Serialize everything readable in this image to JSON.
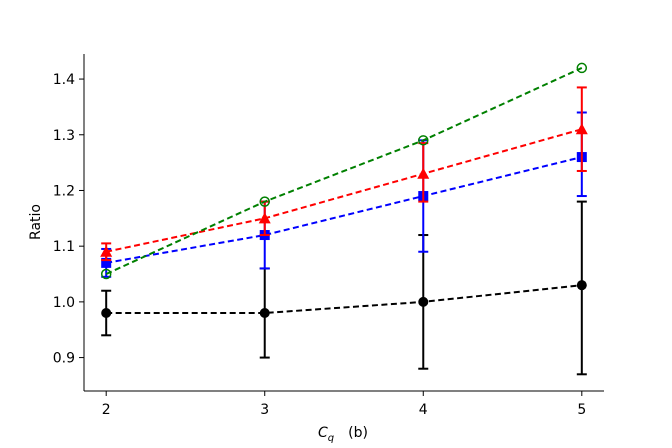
{
  "chart_data": {
    "type": "line",
    "xlabel": "C_q",
    "xlabel_main": "C",
    "xlabel_sub": "q",
    "xlabel_suffix": "(b)",
    "ylabel": "Ratio",
    "xlim": [
      1.86,
      5.14
    ],
    "ylim": [
      0.84,
      1.445
    ],
    "x_ticks": [
      2,
      3,
      4,
      5
    ],
    "y_ticks": [
      0.9,
      1.0,
      1.1,
      1.2,
      1.3,
      1.4
    ],
    "x_tick_labels": [
      "2",
      "3",
      "4",
      "5"
    ],
    "y_tick_labels": [
      "0.9",
      "1.0",
      "1.1",
      "1.2",
      "1.3",
      "1.4"
    ],
    "grid": false,
    "legend": "none",
    "series": [
      {
        "color": "#000000",
        "marker": "circle-filled",
        "x": [
          2,
          3,
          4,
          5
        ],
        "y": [
          0.98,
          0.98,
          1.0,
          1.03
        ],
        "err_low": [
          0.94,
          0.9,
          0.88,
          0.87
        ],
        "err_high": [
          1.02,
          1.06,
          1.12,
          1.18
        ]
      },
      {
        "color": "#0000ff",
        "marker": "square-filled",
        "x": [
          2,
          3,
          4,
          5
        ],
        "y": [
          1.07,
          1.12,
          1.19,
          1.26
        ],
        "err_low": [
          1.045,
          1.06,
          1.09,
          1.19
        ],
        "err_high": [
          1.095,
          1.18,
          1.29,
          1.34
        ]
      },
      {
        "color": "#ff0000",
        "marker": "triangle-filled",
        "x": [
          2,
          3,
          4,
          5
        ],
        "y": [
          1.09,
          1.15,
          1.23,
          1.31
        ],
        "err_low": [
          1.075,
          1.12,
          1.18,
          1.235
        ],
        "err_high": [
          1.105,
          1.18,
          1.285,
          1.385
        ]
      },
      {
        "color": "#008000",
        "marker": "circle-open",
        "x": [
          2,
          3,
          4,
          5
        ],
        "y": [
          1.05,
          1.18,
          1.29,
          1.42
        ],
        "err_low": [
          1.05,
          1.18,
          1.29,
          1.42
        ],
        "err_high": [
          1.05,
          1.18,
          1.29,
          1.42
        ]
      }
    ]
  }
}
